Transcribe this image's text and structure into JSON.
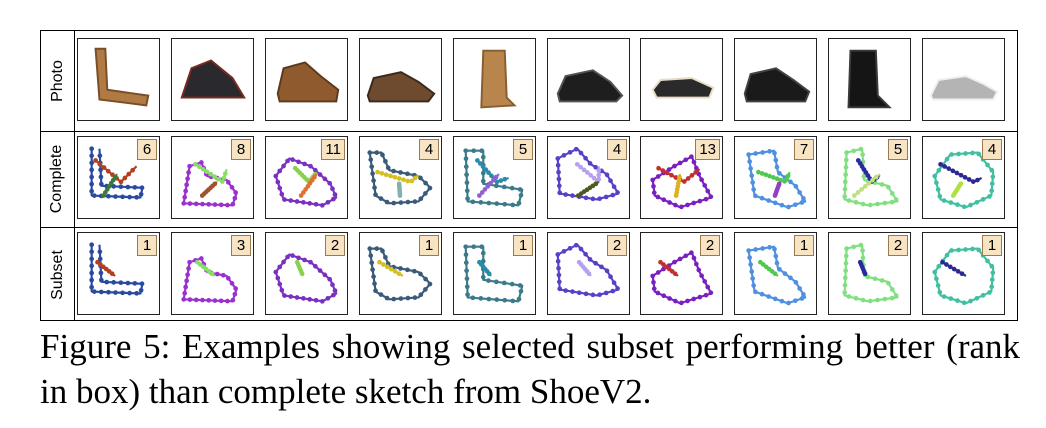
{
  "row_labels": {
    "photo": "Photo",
    "complete": "Complete",
    "subset": "Subset"
  },
  "columns": [
    {
      "item": "tan suede heeled boot",
      "complete_rank": "6",
      "subset_rank": "1"
    },
    {
      "item": "black and burgundy oxford shoe",
      "complete_rank": "8",
      "subset_rank": "3"
    },
    {
      "item": "brown suede desert boot",
      "complete_rank": "11",
      "subset_rank": "2"
    },
    {
      "item": "brown leather brogue",
      "complete_rank": "4",
      "subset_rank": "1"
    },
    {
      "item": "tan sheepskin boot",
      "complete_rank": "5",
      "subset_rank": "1"
    },
    {
      "item": "black suede derby shoe",
      "complete_rank": "4",
      "subset_rank": "2"
    },
    {
      "item": "black sheepskin slipper",
      "complete_rank": "13",
      "subset_rank": "2"
    },
    {
      "item": "black leather chukka shoe",
      "complete_rank": "7",
      "subset_rank": "1"
    },
    {
      "item": "black rain boot with bow",
      "complete_rank": "5",
      "subset_rank": "2"
    },
    {
      "item": "grey canvas sneaker",
      "complete_rank": "4",
      "subset_rank": "1"
    }
  ],
  "caption": {
    "label": "Figure 5:",
    "text": "Examples showing selected subset performing better (rank in box) than complete sketch from ShoeV2."
  },
  "colors": {
    "rank_box": "#f8e3c2",
    "border": "#000000"
  }
}
